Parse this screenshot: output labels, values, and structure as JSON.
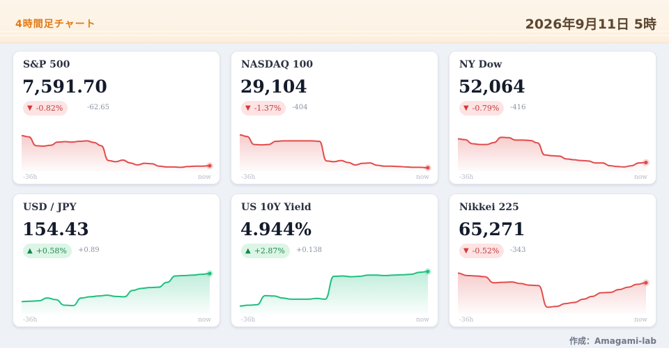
{
  "header": {
    "title": "4時間足チャート",
    "date": "2026年9月11日 5時"
  },
  "colors": {
    "down": "#e24b4b",
    "up": "#1fbf7f",
    "accent": "#e07a14"
  },
  "axis": {
    "start_label": "-36h",
    "end_label": "now"
  },
  "cards": [
    {
      "name": "S&P 500",
      "value": "7,591.70",
      "direction": "down",
      "arrow": "▼",
      "pct_change": "-0.82%",
      "abs_change": "-62.65",
      "series": [
        0.8,
        0.77,
        0.55,
        0.54,
        0.56,
        0.64,
        0.65,
        0.64,
        0.66,
        0.67,
        0.63,
        0.55,
        0.18,
        0.15,
        0.19,
        0.12,
        0.07,
        0.11,
        0.1,
        0.04,
        0.02,
        0.02,
        0.01,
        0.03,
        0.04,
        0.04,
        0.05
      ]
    },
    {
      "name": "NASDAQ 100",
      "value": "29,104",
      "direction": "down",
      "arrow": "▼",
      "pct_change": "-1.37%",
      "abs_change": "-404",
      "series": [
        0.82,
        0.78,
        0.58,
        0.57,
        0.58,
        0.66,
        0.67,
        0.67,
        0.67,
        0.67,
        0.67,
        0.66,
        0.17,
        0.15,
        0.18,
        0.13,
        0.07,
        0.11,
        0.12,
        0.06,
        0.04,
        0.04,
        0.03,
        0.02,
        0.01,
        0.01,
        0.0
      ]
    },
    {
      "name": "NY Dow",
      "value": "52,064",
      "direction": "down",
      "arrow": "▼",
      "pct_change": "-0.79%",
      "abs_change": "-416",
      "series": [
        0.72,
        0.7,
        0.6,
        0.58,
        0.58,
        0.63,
        0.76,
        0.75,
        0.69,
        0.69,
        0.68,
        0.62,
        0.32,
        0.3,
        0.29,
        0.22,
        0.2,
        0.18,
        0.17,
        0.12,
        0.12,
        0.05,
        0.03,
        0.02,
        0.05,
        0.12,
        0.13
      ]
    },
    {
      "name": "USD / JPY",
      "value": "154.43",
      "direction": "up",
      "arrow": "▲",
      "pct_change": "+0.58%",
      "abs_change": "+0.89",
      "series": [
        0.22,
        0.23,
        0.24,
        0.31,
        0.27,
        0.13,
        0.12,
        0.31,
        0.34,
        0.36,
        0.38,
        0.35,
        0.34,
        0.5,
        0.55,
        0.57,
        0.58,
        0.7,
        0.86,
        0.87,
        0.88,
        0.9,
        0.92
      ]
    },
    {
      "name": "US 10Y Yield",
      "value": "4.944%",
      "direction": "up",
      "arrow": "▲",
      "pct_change": "+2.87%",
      "abs_change": "+0.138",
      "series": [
        0.11,
        0.13,
        0.14,
        0.37,
        0.36,
        0.31,
        0.28,
        0.28,
        0.28,
        0.3,
        0.28,
        0.85,
        0.86,
        0.84,
        0.85,
        0.88,
        0.88,
        0.87,
        0.88,
        0.89,
        0.9,
        0.95,
        0.97
      ]
    },
    {
      "name": "Nikkei 225",
      "value": "65,271",
      "direction": "down",
      "arrow": "▼",
      "pct_change": "-0.52%",
      "abs_change": "-343",
      "series": [
        0.93,
        0.87,
        0.86,
        0.84,
        0.69,
        0.7,
        0.71,
        0.67,
        0.63,
        0.62,
        0.08,
        0.1,
        0.17,
        0.2,
        0.28,
        0.35,
        0.44,
        0.45,
        0.52,
        0.58,
        0.65,
        0.69
      ]
    }
  ],
  "footer": {
    "credit": "作成：Amagami-lab"
  }
}
